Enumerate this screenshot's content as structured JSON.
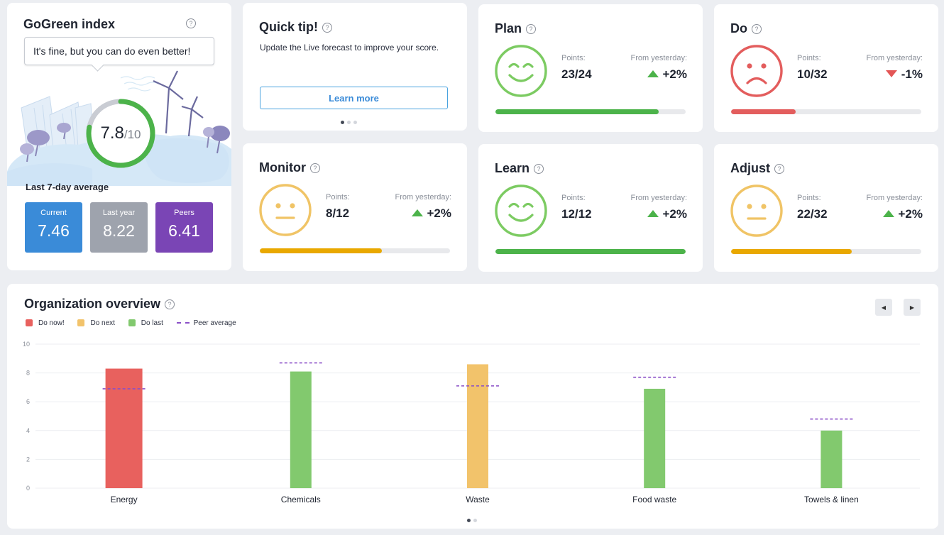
{
  "gogreen": {
    "title": "GoGreen index",
    "message": "It's fine, but you can do even better!",
    "score": "7.8",
    "score_max": "/10",
    "score_fraction": 0.78,
    "avg_label": "Last 7-day average",
    "tiles": [
      {
        "label": "Current",
        "value": "7.46"
      },
      {
        "label": "Last year",
        "value": "8.22"
      },
      {
        "label": "Peers",
        "value": "6.41"
      }
    ]
  },
  "quick_tip": {
    "title": "Quick tip!",
    "text": "Update the Live forecast to improve your score.",
    "button": "Learn more"
  },
  "labels": {
    "points": "Points:",
    "from_yesterday": "From yesterday:"
  },
  "cards": {
    "plan": {
      "title": "Plan",
      "points": "23/24",
      "change": "+2%",
      "trend": "up",
      "mood": "happy",
      "progress": 0.86,
      "color": "#4cb34a"
    },
    "do": {
      "title": "Do",
      "points": "10/32",
      "change": "-1%",
      "trend": "down",
      "mood": "sad",
      "progress": 0.34,
      "color": "#e35d5d"
    },
    "monitor": {
      "title": "Monitor",
      "points": "8/12",
      "change": "+2%",
      "trend": "up",
      "mood": "neutral",
      "progress": 0.64,
      "color": "#e9a800"
    },
    "learn": {
      "title": "Learn",
      "points": "12/12",
      "change": "+2%",
      "trend": "up",
      "mood": "happy",
      "progress": 1.0,
      "color": "#4cb34a"
    },
    "adjust": {
      "title": "Adjust",
      "points": "22/32",
      "change": "+2%",
      "trend": "up",
      "mood": "neutral",
      "progress": 0.635,
      "color": "#e9a800"
    }
  },
  "org": {
    "title": "Organization overview",
    "legend": [
      {
        "label": "Do now!",
        "color": "#e8615e"
      },
      {
        "label": "Do next",
        "color": "#f2c36b"
      },
      {
        "label": "Do last",
        "color": "#82c96e"
      },
      {
        "label": "Peer average",
        "color": "#8a4fc7"
      }
    ]
  },
  "chart_data": {
    "type": "bar",
    "categories": [
      "Energy",
      "Chemicals",
      "Waste",
      "Food waste",
      "Towels & linen"
    ],
    "values": [
      8.3,
      8.1,
      8.6,
      6.9,
      4.0
    ],
    "bar_colors": [
      "#e8615e",
      "#82c96e",
      "#f2c36b",
      "#82c96e",
      "#82c96e"
    ],
    "peer_average": [
      6.9,
      8.7,
      7.1,
      7.7,
      4.8
    ],
    "yticks": [
      0,
      2,
      4,
      6,
      8,
      10
    ],
    "ylim": [
      0,
      10
    ],
    "grid": true,
    "legend_position": "top-left"
  }
}
